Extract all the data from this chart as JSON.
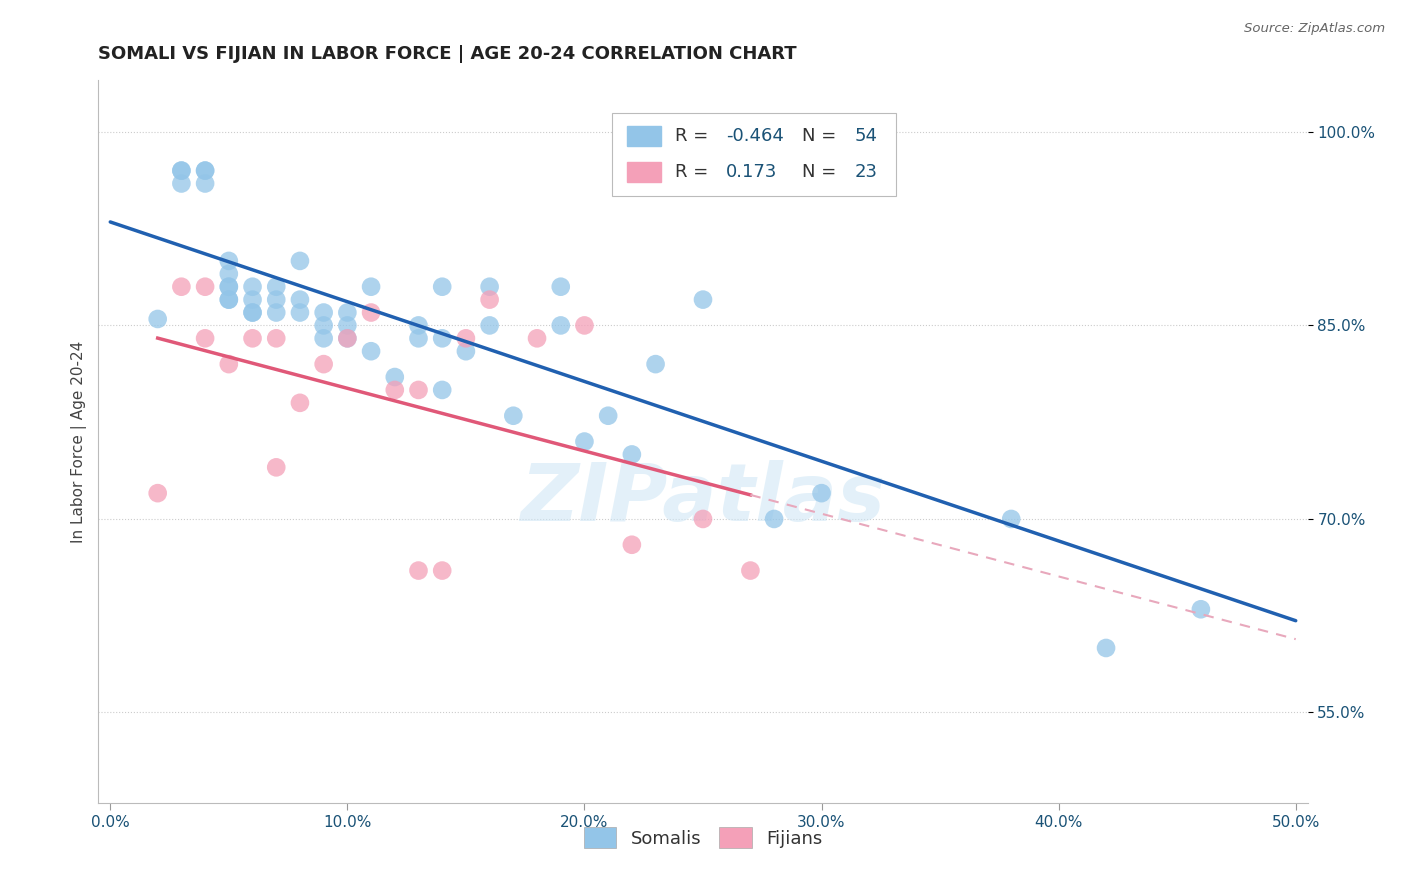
{
  "title": "SOMALI VS FIJIAN IN LABOR FORCE | AGE 20-24 CORRELATION CHART",
  "source": "Source: ZipAtlas.com",
  "ylabel": "In Labor Force | Age 20-24",
  "xlim": [
    -0.005,
    0.505
  ],
  "ylim": [
    0.48,
    1.04
  ],
  "ytick_labels": [
    "55.0%",
    "70.0%",
    "85.0%",
    "100.0%"
  ],
  "ytick_values": [
    0.55,
    0.7,
    0.85,
    1.0
  ],
  "xtick_labels": [
    "0.0%",
    "10.0%",
    "20.0%",
    "30.0%",
    "40.0%",
    "50.0%"
  ],
  "xtick_values": [
    0.0,
    0.1,
    0.2,
    0.3,
    0.4,
    0.5
  ],
  "somali_R": -0.464,
  "somali_N": 54,
  "fijian_R": 0.173,
  "fijian_N": 23,
  "somali_color": "#93c5e8",
  "fijian_color": "#f4a0b8",
  "somali_line_color": "#2060b0",
  "fijian_line_color": "#e05878",
  "fijian_dash_color": "#e8a8bc",
  "watermark": "ZIPatlas",
  "somali_x": [
    0.02,
    0.03,
    0.03,
    0.03,
    0.04,
    0.04,
    0.04,
    0.05,
    0.05,
    0.05,
    0.05,
    0.05,
    0.05,
    0.06,
    0.06,
    0.06,
    0.06,
    0.07,
    0.07,
    0.07,
    0.08,
    0.08,
    0.08,
    0.09,
    0.09,
    0.09,
    0.1,
    0.1,
    0.1,
    0.11,
    0.11,
    0.12,
    0.13,
    0.13,
    0.14,
    0.14,
    0.14,
    0.15,
    0.16,
    0.16,
    0.17,
    0.19,
    0.19,
    0.2,
    0.21,
    0.22,
    0.23,
    0.25,
    0.25,
    0.28,
    0.3,
    0.38,
    0.42,
    0.46
  ],
  "somali_y": [
    0.855,
    0.96,
    0.97,
    0.97,
    0.97,
    0.97,
    0.96,
    0.87,
    0.88,
    0.87,
    0.88,
    0.89,
    0.9,
    0.86,
    0.86,
    0.87,
    0.88,
    0.86,
    0.87,
    0.88,
    0.86,
    0.87,
    0.9,
    0.84,
    0.85,
    0.86,
    0.84,
    0.85,
    0.86,
    0.83,
    0.88,
    0.81,
    0.84,
    0.85,
    0.8,
    0.84,
    0.88,
    0.83,
    0.85,
    0.88,
    0.78,
    0.85,
    0.88,
    0.76,
    0.78,
    0.75,
    0.82,
    0.87,
    1.0,
    0.7,
    0.72,
    0.7,
    0.6,
    0.63
  ],
  "fijian_x": [
    0.02,
    0.03,
    0.04,
    0.04,
    0.05,
    0.06,
    0.07,
    0.07,
    0.08,
    0.09,
    0.1,
    0.11,
    0.12,
    0.13,
    0.13,
    0.14,
    0.15,
    0.16,
    0.18,
    0.2,
    0.22,
    0.25,
    0.27
  ],
  "fijian_y": [
    0.72,
    0.88,
    0.84,
    0.88,
    0.82,
    0.84,
    0.74,
    0.84,
    0.79,
    0.82,
    0.84,
    0.86,
    0.8,
    0.66,
    0.8,
    0.66,
    0.84,
    0.87,
    0.84,
    0.85,
    0.68,
    0.7,
    0.66
  ],
  "grid_color": "#cccccc",
  "bg_color": "#ffffff",
  "title_fontsize": 13,
  "label_fontsize": 11,
  "tick_fontsize": 11,
  "legend_fontsize": 13
}
